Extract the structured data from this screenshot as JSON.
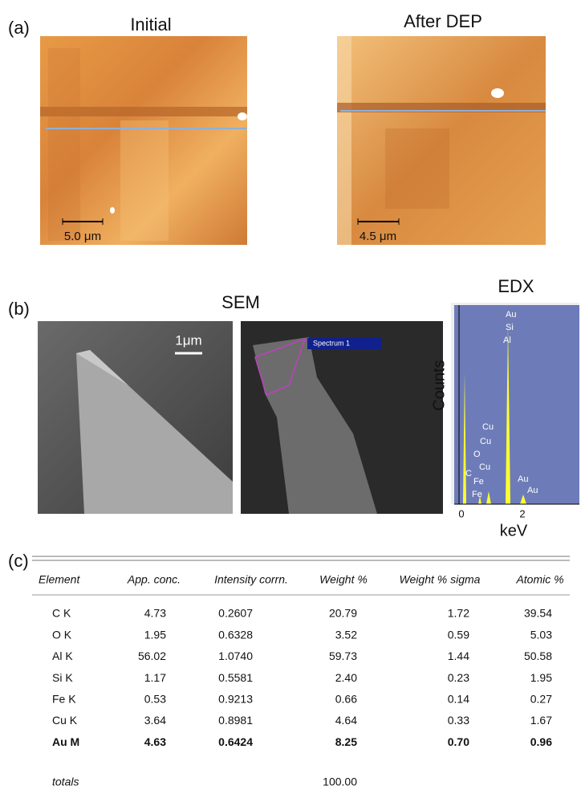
{
  "panel_a": {
    "label": "(a)",
    "images": [
      {
        "title": "Initial",
        "scale": "5.0 μm"
      },
      {
        "title": "After DEP",
        "scale": "4.5 μm"
      }
    ]
  },
  "panel_b": {
    "label": "(b)",
    "sem_title": "SEM",
    "sem_scale": "1μm",
    "spectrum_label": "Spectrum 1",
    "edx": {
      "title": "EDX",
      "y_label": "Counts",
      "x_label": "keV",
      "x_ticks": [
        "0",
        "2"
      ],
      "peak_labels": [
        "Au",
        "Si",
        "Al",
        "Cu",
        "Cu",
        "O",
        "Cu",
        "C",
        "Fe",
        "Fe",
        "Au",
        "Au"
      ]
    }
  },
  "panel_c": {
    "label": "(c)",
    "table": {
      "header": [
        "Element",
        "App. conc.",
        "Intensity corrn.",
        "Weight %",
        "Weight % sigma",
        "Atomic %"
      ],
      "rows": [
        [
          "C K",
          "4.73",
          "0.2607",
          "20.79",
          "1.72",
          "39.54"
        ],
        [
          "O K",
          "1.95",
          "0.6328",
          "3.52",
          "0.59",
          "5.03"
        ],
        [
          "Al K",
          "56.02",
          "1.0740",
          "59.73",
          "1.44",
          "50.58"
        ],
        [
          "Si K",
          "1.17",
          "0.5581",
          "2.40",
          "0.23",
          "1.95"
        ],
        [
          "Fe K",
          "0.53",
          "0.9213",
          "0.66",
          "0.14",
          "0.27"
        ],
        [
          "Cu K",
          "3.64",
          "0.8981",
          "4.64",
          "0.33",
          "1.67"
        ],
        [
          "Au M",
          "4.63",
          "0.6424",
          "8.25",
          "0.70",
          "0.96"
        ]
      ],
      "totals_label": "totals",
      "totals_value": "100.00"
    }
  }
}
